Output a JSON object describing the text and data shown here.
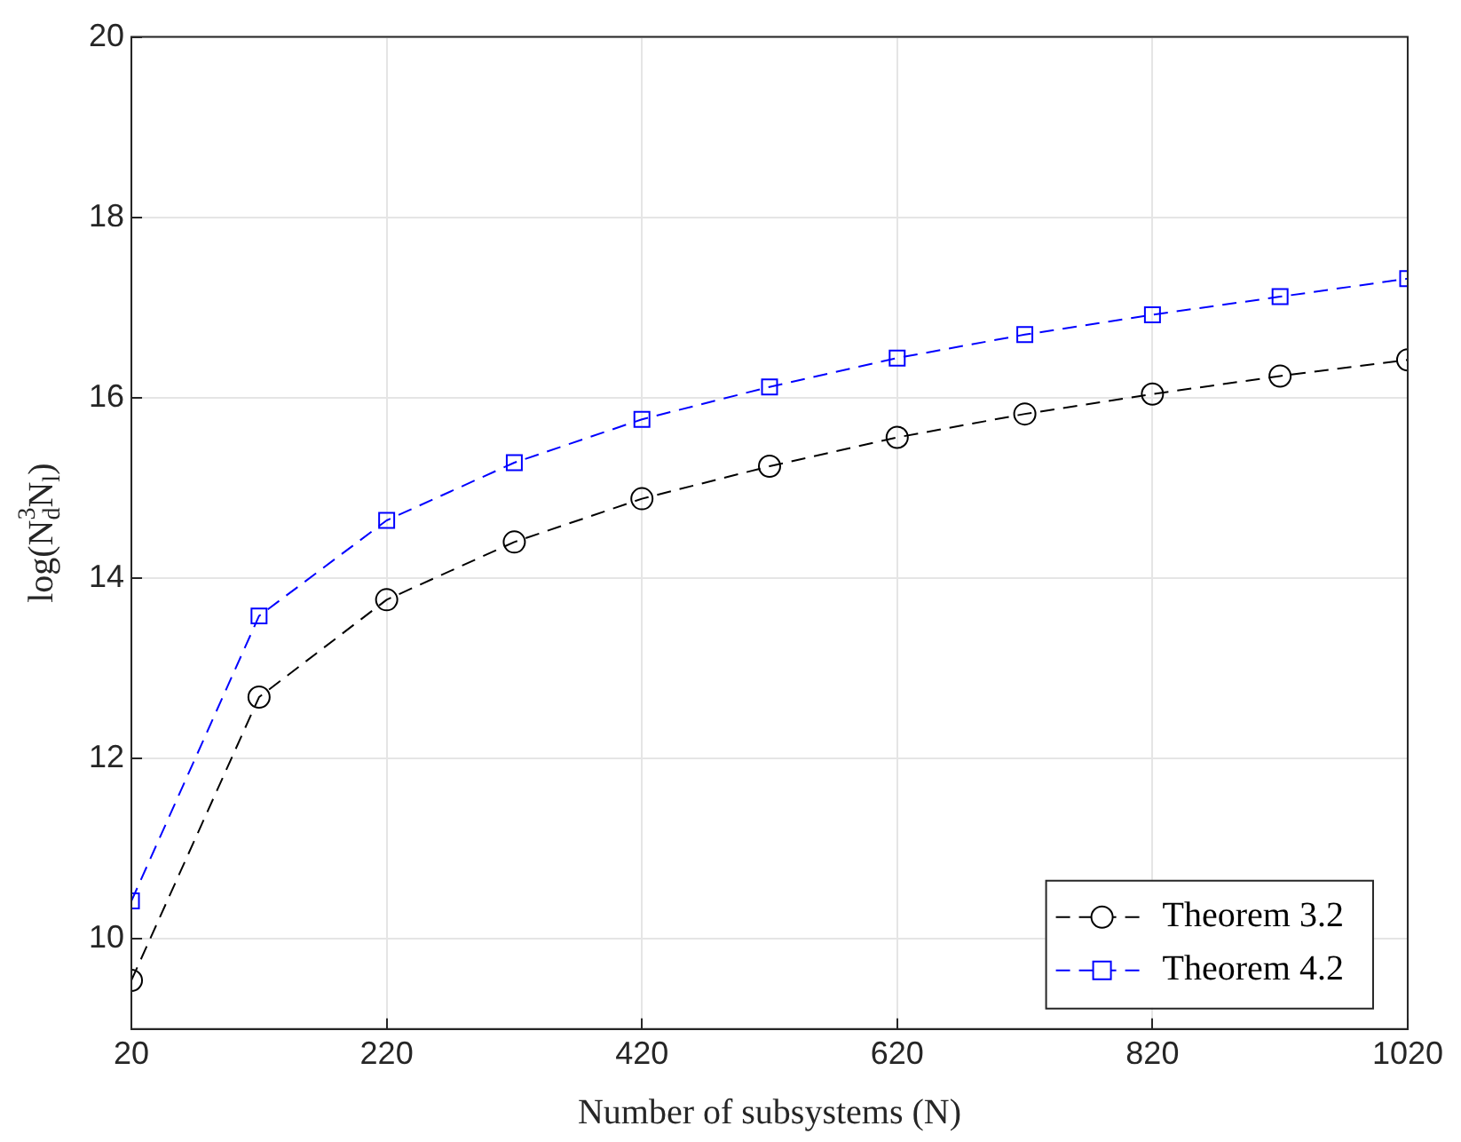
{
  "chart_data": {
    "type": "line",
    "xlabel": "Number of subsystems (N)",
    "ylabel": "log(N$_{d}$$^{3}$N$_{l}$)",
    "x": [
      20,
      120,
      220,
      320,
      420,
      520,
      620,
      720,
      820,
      920,
      1020
    ],
    "series": [
      {
        "name": "Theorem 3.2",
        "color": "#000000",
        "marker": "circle",
        "values": [
          9.54,
          12.68,
          13.76,
          14.4,
          14.88,
          15.24,
          15.56,
          15.82,
          16.04,
          16.24,
          16.42
        ]
      },
      {
        "name": "Theorem 4.2",
        "color": "#0000ff",
        "marker": "square",
        "values": [
          10.42,
          13.58,
          14.64,
          15.28,
          15.76,
          16.12,
          16.44,
          16.7,
          16.92,
          17.12,
          17.32
        ]
      }
    ],
    "xlim": [
      20,
      1020
    ],
    "ylim": [
      9,
      20
    ],
    "xticks": [
      20,
      220,
      420,
      620,
      820,
      1020
    ],
    "yticks": [
      10,
      12,
      14,
      16,
      18,
      20
    ],
    "grid": true,
    "legend": "bottom right",
    "line_style": "dashed"
  }
}
